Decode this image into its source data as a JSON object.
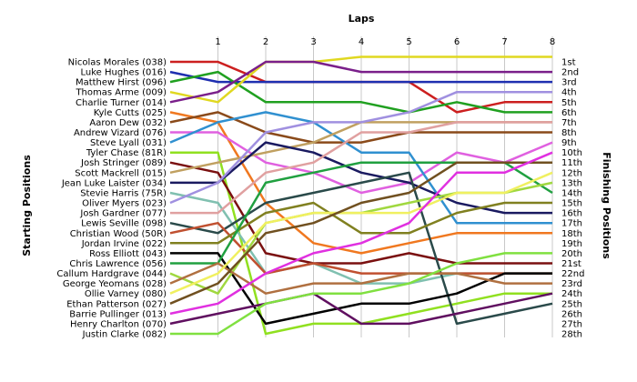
{
  "chart_data": {
    "type": "line",
    "title": "",
    "xlabel": "Laps",
    "ylabel_left": "Starting Positions",
    "ylabel_right": "Finishing Positions",
    "x": [
      0,
      1,
      2,
      3,
      4,
      5,
      6,
      7,
      8
    ],
    "x_tick_labels": [
      "1",
      "2",
      "3",
      "4",
      "5",
      "6",
      "7",
      "8"
    ],
    "grid": true,
    "finishing_labels": [
      "1st",
      "2nd",
      "3rd",
      "4th",
      "5th",
      "6th",
      "7th",
      "8th",
      "9th",
      "10th",
      "11th",
      "12th",
      "13th",
      "14th",
      "15th",
      "16th",
      "17th",
      "18th",
      "19th",
      "20th",
      "21st",
      "22nd",
      "23rd",
      "24th",
      "25th",
      "26th",
      "27th",
      "28th"
    ],
    "series": [
      {
        "name": "Nicolas Morales (038)",
        "color": "#cc1f1f",
        "positions": [
          1,
          1,
          3,
          3,
          3,
          3,
          6,
          5,
          5
        ]
      },
      {
        "name": "Luke Hughes (016)",
        "color": "#1f2fb0",
        "positions": [
          2,
          3,
          3,
          3,
          3,
          3,
          3,
          3,
          3
        ]
      },
      {
        "name": "Matthew Hirst (096)",
        "color": "#20a020",
        "positions": [
          3,
          2,
          5,
          5,
          5,
          6,
          5,
          6,
          6
        ]
      },
      {
        "name": "Thomas Arme (009)",
        "color": "#e0d820",
        "positions": [
          4,
          5,
          1,
          1,
          0.5,
          0.5,
          0.5,
          0.5,
          0.5
        ]
      },
      {
        "name": "Charlie Turner (014)",
        "color": "#7a1f8a",
        "positions": [
          5,
          4,
          1,
          1,
          2,
          2,
          2,
          2,
          2
        ]
      },
      {
        "name": "Kyle Cutts (025)",
        "color": "#f07820",
        "positions": [
          6,
          7,
          15,
          19,
          20,
          19,
          18,
          18,
          18
        ]
      },
      {
        "name": "Aaron Dew (032)",
        "color": "#8a4a1a",
        "positions": [
          7,
          6,
          8,
          9,
          9,
          8,
          8,
          8,
          8
        ]
      },
      {
        "name": "Andrew Vizard (076)",
        "color": "#e060e0",
        "positions": [
          8,
          8,
          11,
          12,
          14,
          13,
          10,
          11,
          9
        ]
      },
      {
        "name": "Steve Lyall (031)",
        "color": "#3090d0",
        "positions": [
          9,
          7,
          6,
          7,
          10,
          10,
          17,
          17,
          17
        ]
      },
      {
        "name": "Tyler Chase (81R)",
        "color": "#90e020",
        "positions": [
          10,
          10,
          28,
          27,
          27,
          26,
          25,
          24,
          24
        ]
      },
      {
        "name": "Josh Stringer (089)",
        "color": "#7a1010",
        "positions": [
          11,
          12,
          20,
          21,
          21,
          20,
          21,
          21,
          21
        ]
      },
      {
        "name": "Scott Mackrell (015)",
        "color": "#c0a060",
        "positions": [
          12,
          11,
          10,
          9,
          7,
          7,
          7,
          7,
          7
        ]
      },
      {
        "name": "Jean Luke Laister (034)",
        "color": "#1a1a60",
        "positions": [
          13,
          13,
          9,
          10,
          12,
          13,
          15,
          16,
          16
        ]
      },
      {
        "name": "Stevie Harris (75R)",
        "color": "#80c0b0",
        "positions": [
          14,
          15,
          22,
          21,
          23,
          23,
          22,
          22,
          22
        ]
      },
      {
        "name": "Oliver Myers (023)",
        "color": "#a090e0",
        "positions": [
          15,
          13,
          8,
          7,
          7,
          6,
          4,
          4,
          4
        ]
      },
      {
        "name": "Josh Gardner (077)",
        "color": "#e0a0a0",
        "positions": [
          16,
          16,
          12,
          11,
          8,
          8,
          7,
          7,
          7
        ]
      },
      {
        "name": "Lewis Seville (098)",
        "color": "#2a4a4a",
        "positions": [
          17,
          18,
          15,
          14,
          13,
          12,
          27,
          26,
          25
        ]
      },
      {
        "name": "Christian Wood (50R)",
        "color": "#c05030",
        "positions": [
          18,
          17,
          22,
          21,
          22,
          22,
          22,
          22,
          22
        ]
      },
      {
        "name": "Jordan Irvine (022)",
        "color": "#808020",
        "positions": [
          19,
          19,
          16,
          15,
          18,
          18,
          16,
          15,
          15
        ]
      },
      {
        "name": "Ross Elliott (043)",
        "color": "#000000",
        "positions": [
          20,
          20,
          27,
          26,
          25,
          25,
          24,
          22,
          22
        ]
      },
      {
        "name": "Chris Lawrence (056)",
        "color": "#20a040",
        "positions": [
          21,
          21,
          13,
          12,
          11,
          11,
          11,
          11,
          14
        ]
      },
      {
        "name": "Callum Hardgrave (044)",
        "color": "#a0d840",
        "positions": [
          22,
          24,
          17,
          16,
          16,
          15,
          14,
          14,
          13
        ]
      },
      {
        "name": "George Yeomans (028)",
        "color": "#b07040",
        "positions": [
          23,
          21,
          24,
          23,
          23,
          22,
          22,
          23,
          23
        ]
      },
      {
        "name": "Ollie Varney (080)",
        "color": "#f0f060",
        "positions": [
          24,
          22,
          17,
          16,
          16,
          16,
          14,
          14,
          12
        ]
      },
      {
        "name": "Ethan Patterson (027)",
        "color": "#705020",
        "positions": [
          25,
          23,
          18,
          17,
          15,
          14,
          11,
          11,
          11
        ]
      },
      {
        "name": "Barrie Pullinger (013)",
        "color": "#e030e0",
        "positions": [
          26,
          25,
          22,
          20,
          19,
          17,
          12,
          12,
          10
        ]
      },
      {
        "name": "Henry Charlton (070)",
        "color": "#601060",
        "positions": [
          27,
          26,
          25,
          24,
          27,
          27,
          26,
          25,
          24
        ]
      },
      {
        "name": "Justin Clarke (082)",
        "color": "#80e040",
        "positions": [
          28,
          28,
          25,
          24,
          24,
          23,
          21,
          20,
          20
        ]
      }
    ]
  }
}
